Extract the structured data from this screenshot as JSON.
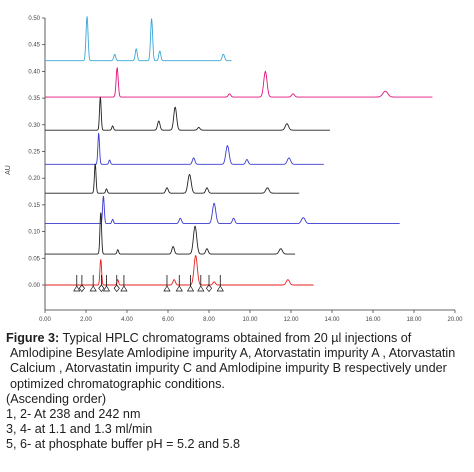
{
  "chart_data": {
    "type": "line",
    "ylabel": "AU",
    "xlabel": "",
    "xlim": [
      0,
      20
    ],
    "ylim": [
      0,
      0.5
    ],
    "x_ticks": [
      "0.00",
      "2.00",
      "4.00",
      "6.00",
      "8.00",
      "10.00",
      "12.00",
      "14.00",
      "16.00",
      "18.00",
      "20.00"
    ],
    "y_ticks": [
      "0.00",
      "0.05",
      "0.10",
      "0.15",
      "0.20",
      "0.25",
      "0.30",
      "0.35",
      "0.40",
      "0.45",
      "0.50"
    ],
    "series": [
      {
        "color": "#39a7d6",
        "baseline": 0.42,
        "x_end": 9.1,
        "peaks": [
          [
            2.05,
            0.082,
            0.05
          ],
          [
            3.4,
            0.012,
            0.05
          ],
          [
            4.45,
            0.022,
            0.05
          ],
          [
            5.2,
            0.078,
            0.05
          ],
          [
            5.6,
            0.018,
            0.05
          ],
          [
            8.7,
            0.012,
            0.06
          ]
        ]
      },
      {
        "color": "#e0117c",
        "baseline": 0.352,
        "x_end": 18.9,
        "peaks": [
          [
            3.52,
            0.055,
            0.05
          ],
          [
            9.0,
            0.006,
            0.06
          ],
          [
            10.75,
            0.048,
            0.08
          ],
          [
            12.1,
            0.006,
            0.07
          ],
          [
            16.6,
            0.011,
            0.12
          ]
        ]
      },
      {
        "color": "#222222",
        "baseline": 0.29,
        "x_end": 13.9,
        "peaks": [
          [
            2.7,
            0.062,
            0.04
          ],
          [
            3.3,
            0.008,
            0.04
          ],
          [
            5.55,
            0.017,
            0.06
          ],
          [
            6.35,
            0.043,
            0.07
          ],
          [
            7.5,
            0.005,
            0.06
          ],
          [
            11.8,
            0.012,
            0.08
          ]
        ]
      },
      {
        "color": "#3a3ad0",
        "baseline": 0.226,
        "x_end": 13.6,
        "peaks": [
          [
            2.62,
            0.058,
            0.04
          ],
          [
            3.15,
            0.008,
            0.04
          ],
          [
            7.25,
            0.012,
            0.06
          ],
          [
            8.9,
            0.035,
            0.08
          ],
          [
            9.85,
            0.009,
            0.06
          ],
          [
            11.9,
            0.012,
            0.08
          ]
        ]
      },
      {
        "color": "#222222",
        "baseline": 0.172,
        "x_end": 12.4,
        "peaks": [
          [
            2.45,
            0.055,
            0.04
          ],
          [
            3.0,
            0.008,
            0.04
          ],
          [
            5.95,
            0.01,
            0.06
          ],
          [
            7.05,
            0.035,
            0.08
          ],
          [
            7.9,
            0.01,
            0.06
          ],
          [
            10.85,
            0.01,
            0.08
          ]
        ]
      },
      {
        "color": "#3a3ad0",
        "baseline": 0.115,
        "x_end": 17.3,
        "peaks": [
          [
            2.85,
            0.052,
            0.04
          ],
          [
            3.3,
            0.008,
            0.04
          ],
          [
            6.6,
            0.01,
            0.06
          ],
          [
            8.25,
            0.038,
            0.08
          ],
          [
            9.2,
            0.01,
            0.06
          ],
          [
            12.6,
            0.011,
            0.09
          ]
        ]
      },
      {
        "color": "#222222",
        "baseline": 0.058,
        "x_end": 12.2,
        "peaks": [
          [
            2.72,
            0.078,
            0.04
          ],
          [
            3.55,
            0.008,
            0.04
          ],
          [
            6.25,
            0.014,
            0.06
          ],
          [
            7.32,
            0.052,
            0.08
          ],
          [
            7.9,
            0.01,
            0.06
          ],
          [
            11.5,
            0.01,
            0.08
          ]
        ]
      },
      {
        "color": "#e62020",
        "baseline": 0.0,
        "x_end": 13.1,
        "peaks": [
          [
            2.72,
            0.048,
            0.04
          ],
          [
            3.55,
            0.01,
            0.04
          ],
          [
            6.3,
            0.01,
            0.06
          ],
          [
            7.35,
            0.055,
            0.08
          ],
          [
            8.25,
            0.006,
            0.06
          ],
          [
            11.85,
            0.01,
            0.08
          ]
        ]
      }
    ],
    "markers": [
      {
        "x": 1.55,
        "symbol": "triangle"
      },
      {
        "x": 1.8,
        "symbol": "diamond"
      },
      {
        "x": 2.35,
        "symbol": "triangle"
      },
      {
        "x": 2.75,
        "symbol": "diamond"
      },
      {
        "x": 3.0,
        "symbol": "triangle"
      },
      {
        "x": 3.5,
        "symbol": "diamond"
      },
      {
        "x": 3.85,
        "symbol": "triangle"
      },
      {
        "x": 5.95,
        "symbol": "triangle"
      },
      {
        "x": 6.55,
        "symbol": "triangle"
      },
      {
        "x": 7.1,
        "symbol": "triangle"
      },
      {
        "x": 7.6,
        "symbol": "triangle"
      },
      {
        "x": 8.0,
        "symbol": "diamond"
      },
      {
        "x": 8.55,
        "symbol": "triangle"
      }
    ]
  },
  "caption": {
    "figure_label": "Figure 3:",
    "text": " Typical HPLC chromatograms obtained from 20 µl injections of Amlodipine Besylate  Amlodipine impurity A, Atorvastatin impurity A , Atorvastatin Calcium , Atorvastatin impurity C  and Amlodipine impurity B respectively under optimized chromatographic conditions.",
    "lines": [
      "(Ascending order)",
      "1, 2- At 238 and 242 nm",
      "3, 4- at 1.1 and 1.3 ml/min",
      "5, 6- at phosphate buffer pH = 5.2 and 5.8"
    ]
  }
}
